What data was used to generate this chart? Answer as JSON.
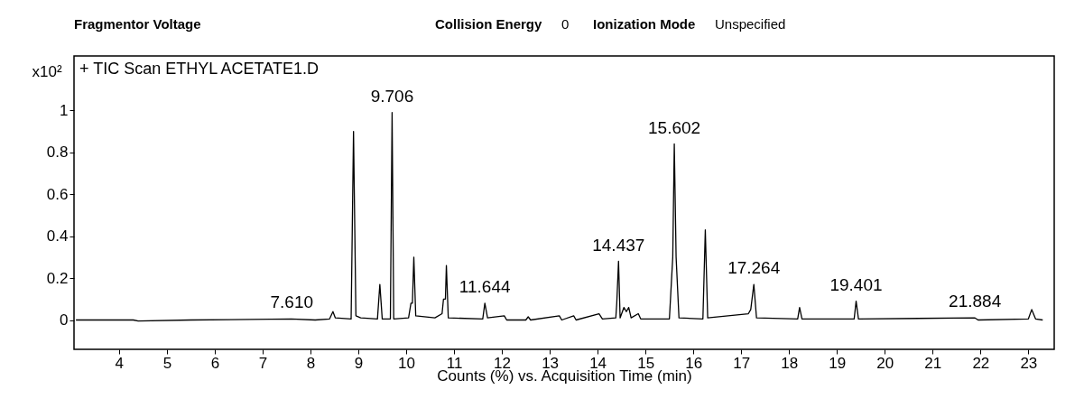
{
  "chart_data": {
    "type": "line",
    "title": "+ TIC Scan ETHYL ACETATE1.D",
    "xlabel": "Counts (%) vs. Acquisition Time (min)",
    "x": [
      3.1,
      4.3,
      4.4,
      5.5,
      7.6,
      8.1,
      8.4,
      8.47,
      8.52,
      8.85,
      8.9,
      8.95,
      9.05,
      9.4,
      9.45,
      9.5,
      9.67,
      9.706,
      9.74,
      10.05,
      10.1,
      10.13,
      10.16,
      10.2,
      10.6,
      10.75,
      10.78,
      10.82,
      10.84,
      10.88,
      11.6,
      11.644,
      11.7,
      12.05,
      12.1,
      12.5,
      12.55,
      12.6,
      13.2,
      13.25,
      13.5,
      13.55,
      14.03,
      14.1,
      14.38,
      14.4,
      14.437,
      14.47,
      14.55,
      14.6,
      14.65,
      14.7,
      14.85,
      14.9,
      15.5,
      15.57,
      15.602,
      15.64,
      15.7,
      16.2,
      16.25,
      16.3,
      17.15,
      17.2,
      17.264,
      17.32,
      18.18,
      18.22,
      18.27,
      19.36,
      19.401,
      19.45,
      21.884,
      21.95,
      23.0,
      23.07,
      23.15,
      23.3
    ],
    "series": [
      {
        "color": "#000000",
        "values": [
          0,
          0,
          -0.005,
          0,
          0.005,
          0,
          0.005,
          0.04,
          0.01,
          0.005,
          0.9,
          0.02,
          0.01,
          0.005,
          0.17,
          0.005,
          0.005,
          0.99,
          0.005,
          0.01,
          0.08,
          0.08,
          0.3,
          0.02,
          0.01,
          0.03,
          0.1,
          0.1,
          0.26,
          0.01,
          0.005,
          0.08,
          0.01,
          0.02,
          0,
          0,
          0.015,
          0,
          0.02,
          0,
          0.02,
          0,
          0.03,
          0.005,
          0.01,
          0.08,
          0.28,
          0.01,
          0.06,
          0.04,
          0.06,
          0.01,
          0.03,
          0.005,
          0.005,
          0.3,
          0.84,
          0.3,
          0.01,
          0.005,
          0.43,
          0.01,
          0.03,
          0.05,
          0.17,
          0.01,
          0.005,
          0.06,
          0.005,
          0.005,
          0.09,
          0.005,
          0.01,
          0,
          0.005,
          0.05,
          0.005,
          0
        ]
      }
    ],
    "xlim": [
      3.06,
      23.54
    ],
    "ylim": [
      -0.14,
      1.26
    ],
    "xticks": [
      4,
      5,
      6,
      7,
      8,
      9,
      10,
      11,
      12,
      13,
      14,
      15,
      16,
      17,
      18,
      19,
      20,
      21,
      22,
      23
    ],
    "yticks": [
      0,
      0.2,
      0.4,
      0.6,
      0.8,
      1
    ],
    "grid": false,
    "marker": "none",
    "line_style": "solid",
    "annotations": [
      "Fragmentor Voltage",
      "Collision Energy",
      "0",
      "Ionization Mode",
      "Unspecified",
      "x10²",
      {
        "text": "7.610",
        "x": 7.61,
        "y": 0.005
      },
      {
        "text": "9.706",
        "x": 9.706,
        "y": 0.99
      },
      {
        "text": "11.644",
        "x": 11.644,
        "y": 0.08
      },
      {
        "text": "14.437",
        "x": 14.437,
        "y": 0.28
      },
      {
        "text": "15.602",
        "x": 15.602,
        "y": 0.84
      },
      {
        "text": "17.264",
        "x": 17.264,
        "y": 0.17
      },
      {
        "text": "19.401",
        "x": 19.401,
        "y": 0.09
      },
      {
        "text": "21.884",
        "x": 21.884,
        "y": 0.01
      }
    ]
  }
}
